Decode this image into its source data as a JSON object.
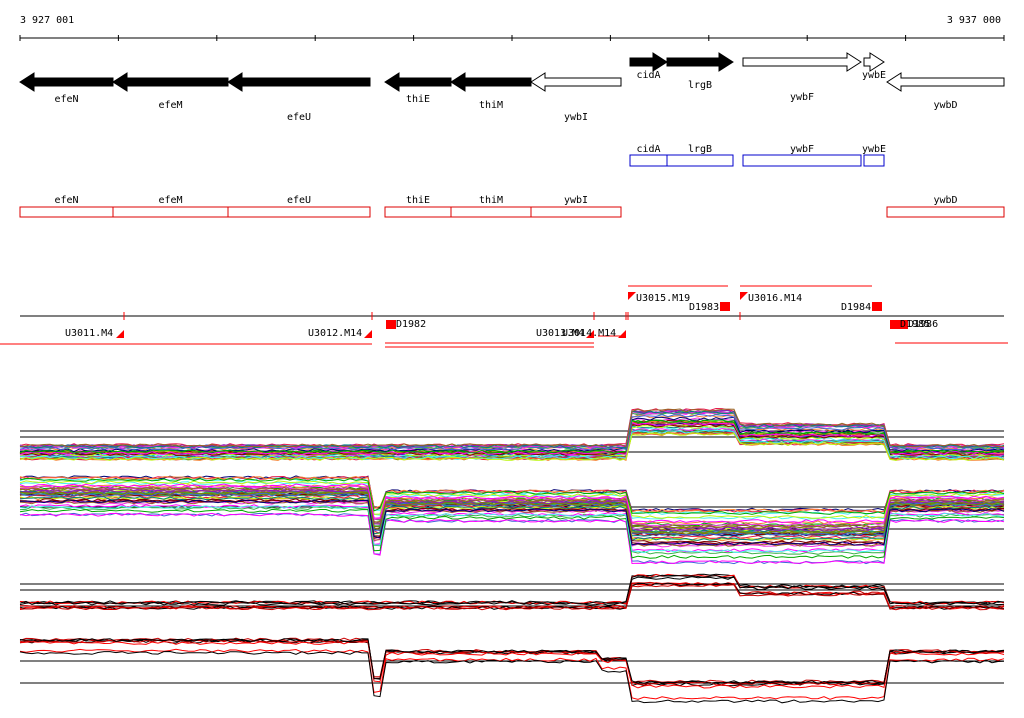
{
  "coords": {
    "start": "3 927 001",
    "end": "3 937 000"
  },
  "colors": {
    "gene_fill": "#000000",
    "gene_outline": "#000000",
    "blue_box": "#0000cc",
    "red_box": "#dd0000",
    "red_mark": "#ff0000",
    "line": "#000000"
  },
  "genes": [
    {
      "name": "efeN",
      "strand": "-",
      "filled": true
    },
    {
      "name": "efeM",
      "strand": "-",
      "filled": true
    },
    {
      "name": "efeU",
      "strand": "-",
      "filled": true
    },
    {
      "name": "thiE",
      "strand": "-",
      "filled": true
    },
    {
      "name": "thiM",
      "strand": "-",
      "filled": true
    },
    {
      "name": "ywbI",
      "strand": "-",
      "filled": false
    },
    {
      "name": "cidA",
      "strand": "+",
      "filled": true
    },
    {
      "name": "lrgB",
      "strand": "+",
      "filled": true
    },
    {
      "name": "ywbF",
      "strand": "+",
      "filled": false
    },
    {
      "name": "ywbE",
      "strand": "+",
      "filled": false
    },
    {
      "name": "ywbD",
      "strand": "-",
      "filled": false
    }
  ],
  "blue_track": [
    "cidA",
    "lrgB",
    "ywbF",
    "ywbE"
  ],
  "red_track": [
    "efeN",
    "efeM",
    "efeU",
    "thiE",
    "thiM",
    "ywbI",
    "ywbD"
  ],
  "regulatory_labels": [
    "U3011.M4",
    "U3012.M14",
    "D1982",
    "U3013.M4",
    "U3014.M14",
    "U3015.M19",
    "D1983",
    "U3016.M14",
    "D1984",
    "D1985",
    "D1986"
  ]
}
